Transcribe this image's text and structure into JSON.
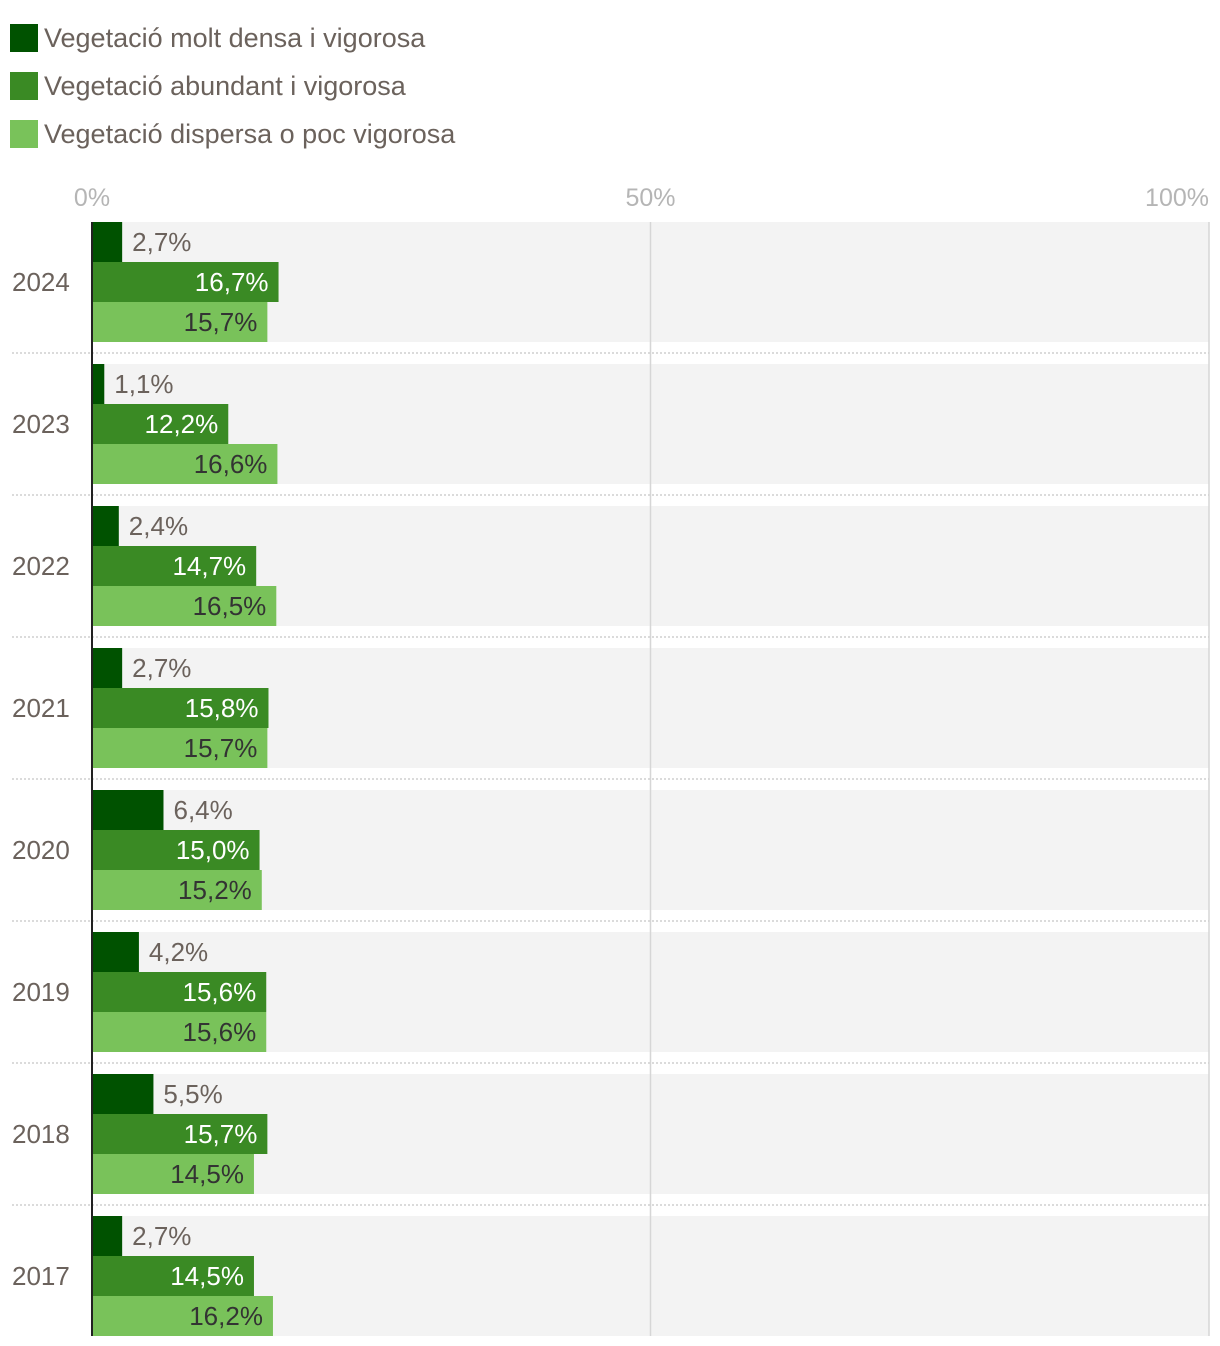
{
  "chart_data": {
    "type": "bar",
    "orientation": "horizontal",
    "categories": [
      "2024",
      "2023",
      "2022",
      "2021",
      "2020",
      "2019",
      "2018",
      "2017"
    ],
    "series": [
      {
        "name": "Vegetació molt densa i vigorosa",
        "color": "#005200",
        "values": [
          2.7,
          1.1,
          2.4,
          2.7,
          6.4,
          4.2,
          5.5,
          2.7
        ],
        "labels": [
          "2,7%",
          "1,1%",
          "2,4%",
          "2,7%",
          "6,4%",
          "4,2%",
          "5,5%",
          "2,7%"
        ]
      },
      {
        "name": "Vegetació abundant i vigorosa",
        "color": "#3a8a24",
        "values": [
          16.7,
          12.2,
          14.7,
          15.8,
          15.0,
          15.6,
          15.7,
          14.5
        ],
        "labels": [
          "16,7%",
          "12,2%",
          "14,7%",
          "15,8%",
          "15,0%",
          "15,6%",
          "15,7%",
          "14,5%"
        ]
      },
      {
        "name": "Vegetació dispersa o poc vigorosa",
        "color": "#79c25a",
        "values": [
          15.7,
          16.6,
          16.5,
          15.7,
          15.2,
          15.6,
          14.5,
          16.2
        ],
        "labels": [
          "15,7%",
          "16,6%",
          "16,5%",
          "15,7%",
          "15,2%",
          "15,6%",
          "14,5%",
          "16,2%"
        ]
      }
    ],
    "xlim": [
      0,
      100
    ],
    "x_ticks": [
      0,
      50,
      100
    ],
    "x_tick_labels": [
      "0%",
      "50%",
      "100%"
    ],
    "label_colors": [
      "#6b625c",
      "#ffffff",
      "#333333"
    ],
    "legend_position": "top-left"
  }
}
